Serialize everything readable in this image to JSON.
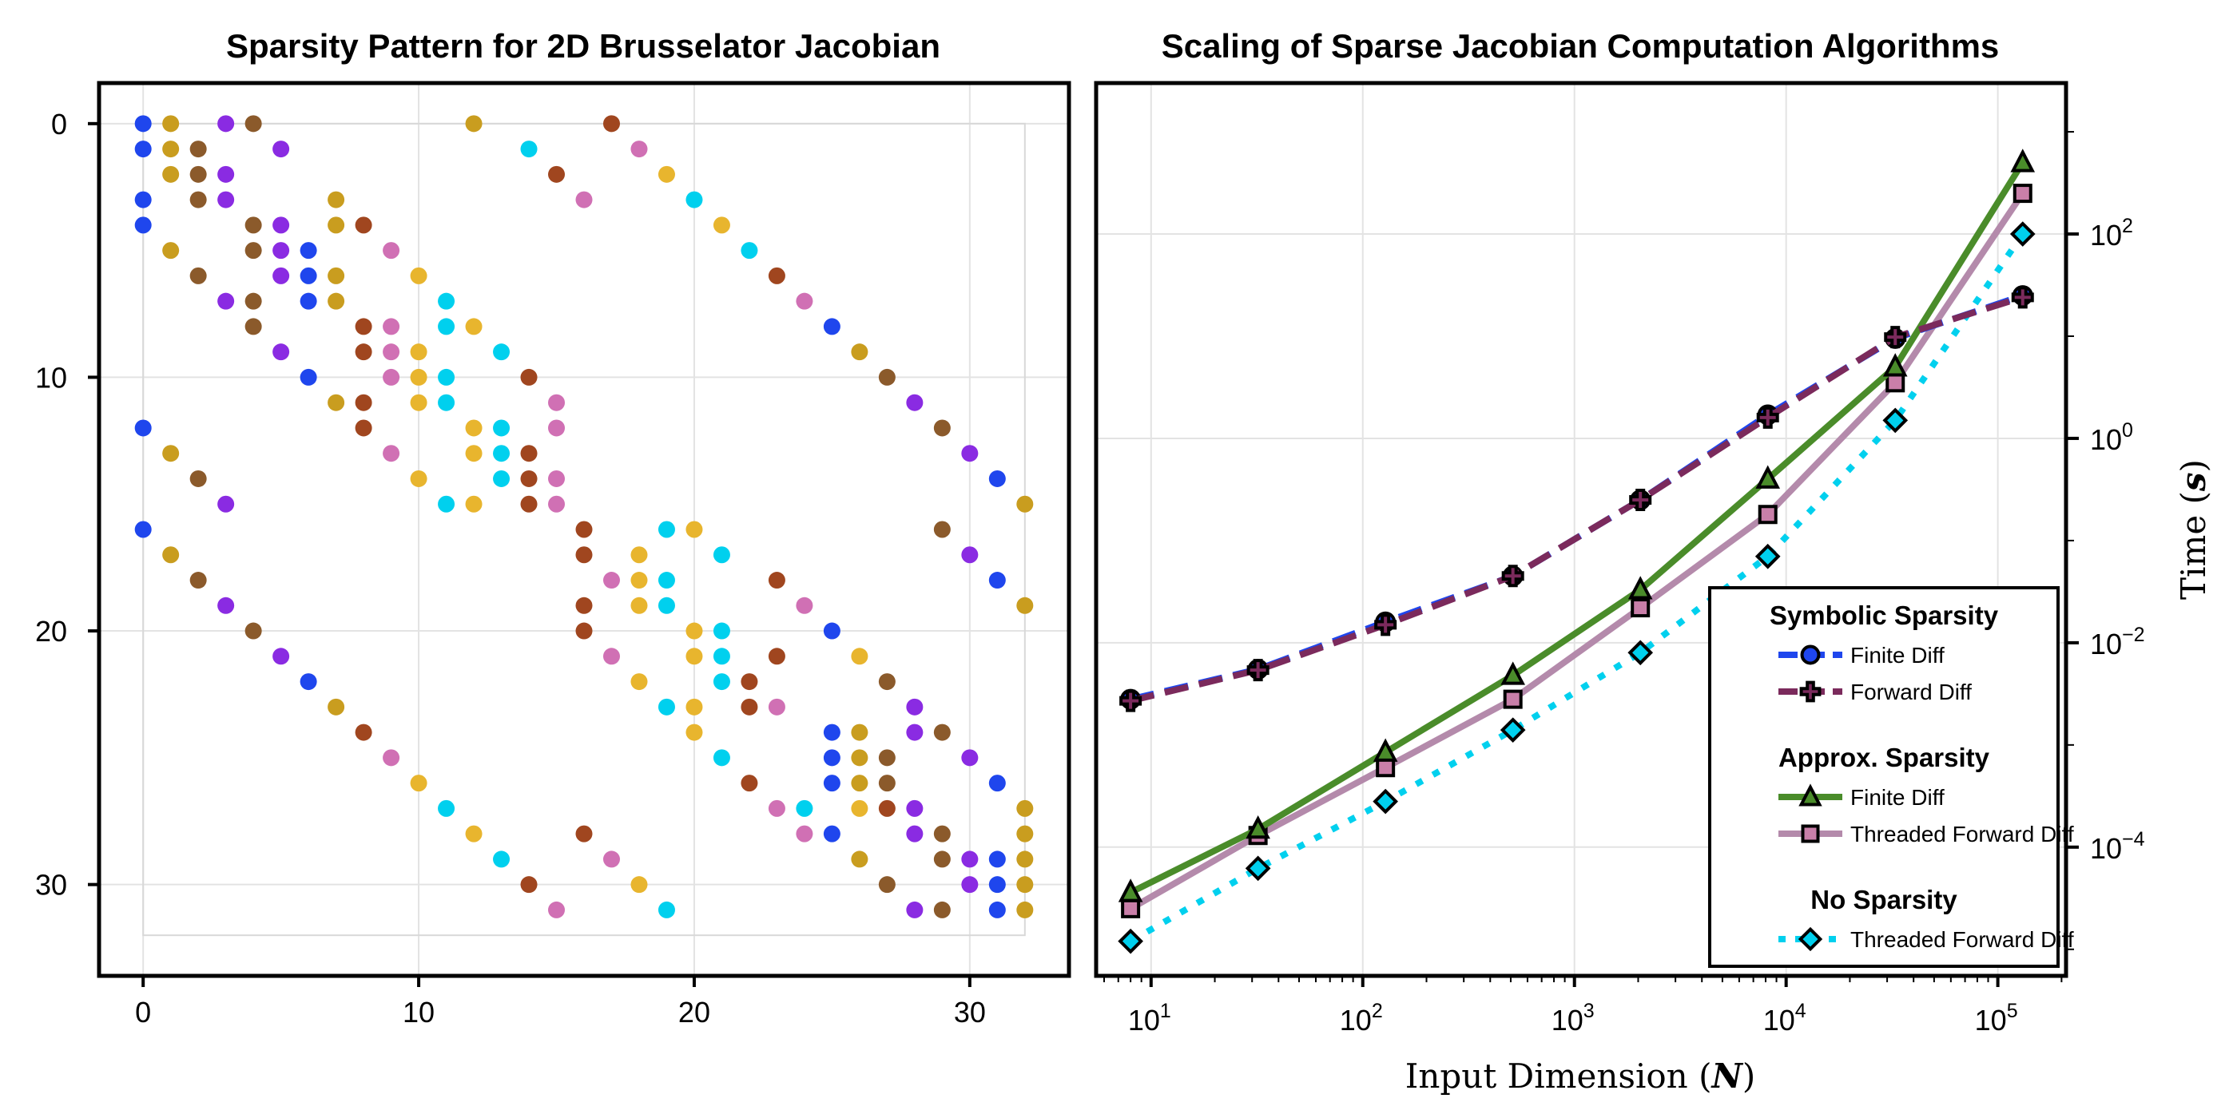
{
  "chart_data": [
    {
      "type": "scatter",
      "title": "Sparsity Pattern for 2D Brusselator Jacobian",
      "xlabel": "",
      "ylabel": "",
      "xlim": [
        -1.6,
        33.6
      ],
      "ylim": [
        33.6,
        -1.6
      ],
      "y_reversed": true,
      "grid": true,
      "x_ticks": [
        0,
        10,
        20,
        30
      ],
      "y_ticks": [
        0,
        10,
        20,
        30
      ],
      "x_tick_labels": [
        "0",
        "10",
        "20",
        "30"
      ],
      "y_tick_labels": [
        "0",
        "10",
        "20",
        "30"
      ],
      "colors": [
        "#1f46ed",
        "#c99d1f",
        "#8a2be2",
        "#8b5a2b",
        "#00d0ee",
        "#d070b4",
        "#e8b52e",
        "#a0461f"
      ],
      "points": [
        [
          0,
          0,
          0
        ],
        [
          1,
          0,
          1
        ],
        [
          3,
          0,
          2
        ],
        [
          4,
          0,
          3
        ],
        [
          12,
          0,
          1
        ],
        [
          17,
          0,
          7
        ],
        [
          0,
          1,
          0
        ],
        [
          1,
          1,
          1
        ],
        [
          2,
          1,
          3
        ],
        [
          5,
          1,
          2
        ],
        [
          14,
          1,
          4
        ],
        [
          18,
          1,
          5
        ],
        [
          1,
          2,
          1
        ],
        [
          2,
          2,
          3
        ],
        [
          3,
          2,
          2
        ],
        [
          15,
          2,
          7
        ],
        [
          19,
          2,
          6
        ],
        [
          0,
          3,
          0
        ],
        [
          2,
          3,
          3
        ],
        [
          3,
          3,
          2
        ],
        [
          7,
          3,
          1
        ],
        [
          16,
          3,
          5
        ],
        [
          20,
          3,
          4
        ],
        [
          0,
          4,
          0
        ],
        [
          4,
          4,
          3
        ],
        [
          5,
          4,
          2
        ],
        [
          7,
          4,
          1
        ],
        [
          8,
          4,
          7
        ],
        [
          21,
          4,
          6
        ],
        [
          1,
          5,
          1
        ],
        [
          4,
          5,
          3
        ],
        [
          5,
          5,
          2
        ],
        [
          6,
          5,
          0
        ],
        [
          9,
          5,
          5
        ],
        [
          22,
          5,
          4
        ],
        [
          2,
          6,
          3
        ],
        [
          5,
          6,
          2
        ],
        [
          6,
          6,
          0
        ],
        [
          7,
          6,
          1
        ],
        [
          10,
          6,
          6
        ],
        [
          23,
          6,
          7
        ],
        [
          3,
          7,
          2
        ],
        [
          4,
          7,
          3
        ],
        [
          6,
          7,
          0
        ],
        [
          7,
          7,
          1
        ],
        [
          11,
          7,
          4
        ],
        [
          24,
          7,
          5
        ],
        [
          4,
          8,
          3
        ],
        [
          8,
          8,
          7
        ],
        [
          9,
          8,
          5
        ],
        [
          11,
          8,
          4
        ],
        [
          12,
          8,
          6
        ],
        [
          25,
          8,
          0
        ],
        [
          5,
          9,
          2
        ],
        [
          8,
          9,
          7
        ],
        [
          9,
          9,
          5
        ],
        [
          10,
          9,
          6
        ],
        [
          13,
          9,
          4
        ],
        [
          26,
          9,
          1
        ],
        [
          6,
          10,
          0
        ],
        [
          9,
          10,
          5
        ],
        [
          10,
          10,
          6
        ],
        [
          11,
          10,
          4
        ],
        [
          14,
          10,
          7
        ],
        [
          27,
          10,
          3
        ],
        [
          7,
          11,
          1
        ],
        [
          8,
          11,
          7
        ],
        [
          10,
          11,
          6
        ],
        [
          11,
          11,
          4
        ],
        [
          15,
          11,
          5
        ],
        [
          28,
          11,
          2
        ],
        [
          8,
          12,
          7
        ],
        [
          12,
          12,
          6
        ],
        [
          13,
          12,
          4
        ],
        [
          15,
          12,
          5
        ],
        [
          29,
          12,
          3
        ],
        [
          9,
          13,
          5
        ],
        [
          12,
          13,
          6
        ],
        [
          13,
          13,
          4
        ],
        [
          14,
          13,
          7
        ],
        [
          30,
          13,
          2
        ],
        [
          10,
          14,
          6
        ],
        [
          13,
          14,
          4
        ],
        [
          14,
          14,
          7
        ],
        [
          15,
          14,
          5
        ],
        [
          31,
          14,
          0
        ],
        [
          11,
          15,
          4
        ],
        [
          12,
          15,
          6
        ],
        [
          14,
          15,
          7
        ],
        [
          15,
          15,
          5
        ],
        [
          32,
          15,
          1
        ],
        [
          16,
          16,
          7
        ],
        [
          19,
          16,
          4
        ],
        [
          20,
          16,
          6
        ],
        [
          29,
          16,
          3
        ],
        [
          16,
          17,
          7
        ],
        [
          18,
          17,
          6
        ],
        [
          21,
          17,
          4
        ],
        [
          30,
          17,
          2
        ],
        [
          17,
          18,
          5
        ],
        [
          18,
          18,
          6
        ],
        [
          19,
          18,
          4
        ],
        [
          23,
          18,
          7
        ],
        [
          31,
          18,
          0
        ],
        [
          16,
          19,
          7
        ],
        [
          18,
          19,
          6
        ],
        [
          19,
          19,
          4
        ],
        [
          24,
          19,
          5
        ],
        [
          32,
          19,
          1
        ],
        [
          16,
          20,
          7
        ],
        [
          20,
          20,
          6
        ],
        [
          21,
          20,
          4
        ],
        [
          25,
          20,
          0
        ],
        [
          17,
          21,
          5
        ],
        [
          20,
          21,
          6
        ],
        [
          21,
          21,
          4
        ],
        [
          23,
          21,
          7
        ],
        [
          26,
          21,
          6
        ],
        [
          18,
          22,
          6
        ],
        [
          21,
          22,
          4
        ],
        [
          22,
          22,
          7
        ],
        [
          27,
          22,
          3
        ],
        [
          19,
          23,
          4
        ],
        [
          20,
          23,
          6
        ],
        [
          22,
          23,
          7
        ],
        [
          23,
          23,
          5
        ],
        [
          28,
          23,
          2
        ],
        [
          20,
          24,
          6
        ],
        [
          25,
          24,
          0
        ],
        [
          26,
          24,
          1
        ],
        [
          28,
          24,
          2
        ],
        [
          29,
          24,
          3
        ],
        [
          21,
          25,
          4
        ],
        [
          25,
          25,
          0
        ],
        [
          26,
          25,
          1
        ],
        [
          27,
          25,
          3
        ],
        [
          30,
          25,
          2
        ],
        [
          22,
          26,
          7
        ],
        [
          25,
          26,
          0
        ],
        [
          26,
          26,
          1
        ],
        [
          27,
          26,
          3
        ],
        [
          31,
          26,
          0
        ],
        [
          23,
          27,
          5
        ],
        [
          24,
          27,
          4
        ],
        [
          26,
          27,
          6
        ],
        [
          27,
          27,
          7
        ],
        [
          28,
          27,
          2
        ],
        [
          32,
          27,
          1
        ],
        [
          24,
          28,
          5
        ],
        [
          25,
          28,
          0
        ],
        [
          28,
          28,
          2
        ],
        [
          29,
          28,
          3
        ],
        [
          32,
          28,
          1
        ],
        [
          26,
          29,
          1
        ],
        [
          29,
          29,
          3
        ],
        [
          30,
          29,
          2
        ],
        [
          31,
          29,
          0
        ],
        [
          32,
          29,
          1
        ],
        [
          27,
          30,
          3
        ],
        [
          30,
          30,
          2
        ],
        [
          31,
          30,
          0
        ],
        [
          32,
          30,
          1
        ],
        [
          28,
          31,
          2
        ],
        [
          29,
          31,
          3
        ],
        [
          31,
          31,
          0
        ],
        [
          32,
          31,
          1
        ],
        [
          0,
          16,
          0
        ],
        [
          1,
          17,
          1
        ],
        [
          2,
          18,
          3
        ],
        [
          3,
          19,
          2
        ],
        [
          4,
          20,
          3
        ],
        [
          5,
          21,
          2
        ],
        [
          6,
          22,
          0
        ],
        [
          7,
          23,
          1
        ],
        [
          8,
          24,
          7
        ],
        [
          9,
          25,
          5
        ],
        [
          10,
          26,
          6
        ],
        [
          11,
          27,
          4
        ],
        [
          12,
          28,
          6
        ],
        [
          13,
          29,
          4
        ],
        [
          14,
          30,
          7
        ],
        [
          15,
          31,
          5
        ],
        [
          16,
          28,
          7
        ],
        [
          17,
          29,
          5
        ],
        [
          18,
          30,
          6
        ],
        [
          19,
          31,
          4
        ],
        [
          0,
          12,
          0
        ],
        [
          1,
          13,
          1
        ],
        [
          2,
          14,
          3
        ],
        [
          3,
          15,
          2
        ]
      ]
    },
    {
      "type": "line",
      "title": "Scaling of Sparse Jacobian Computation Algorithms",
      "xlabel": "Input Dimension (N)",
      "ylabel": "Time (s)",
      "x_scale": "log",
      "y_scale": "log",
      "xlim": [
        5.5,
        210000
      ],
      "ylim": [
        5.5e-06,
        3000
      ],
      "grid": true,
      "x_ticks": [
        10,
        100,
        1000,
        10000,
        100000
      ],
      "x_tick_labels": [
        [
          "10",
          "1"
        ],
        [
          "10",
          "2"
        ],
        [
          "10",
          "3"
        ],
        [
          "10",
          "4"
        ],
        [
          "10",
          "5"
        ]
      ],
      "y_ticks": [
        0.0001,
        0.01,
        1,
        100
      ],
      "y_tick_labels": [
        [
          "10",
          "−4"
        ],
        [
          "10",
          "−2"
        ],
        [
          "10",
          "0"
        ],
        [
          "10",
          "2"
        ]
      ],
      "y_axis_side": "right",
      "legend_position": "bottom-right",
      "x": [
        8,
        32,
        128,
        512,
        2048,
        8192,
        32768,
        131072
      ],
      "series": [
        {
          "name": "Finite Diff",
          "group": "Symbolic Sparsity",
          "color": "#1f46ed",
          "dash": "dashed",
          "marker": "circle",
          "marker_color": "#1f46ed",
          "values": [
            0.0028,
            0.0055,
            0.016,
            0.045,
            0.25,
            1.7,
            9.5,
            25
          ]
        },
        {
          "name": "Forward Diff",
          "group": "Symbolic Sparsity",
          "color": "#7b2a5c",
          "dash": "dashed",
          "marker": "cross",
          "marker_color": "#7b2a5c",
          "values": [
            0.0027,
            0.0054,
            0.015,
            0.045,
            0.25,
            1.6,
            9.8,
            24
          ]
        },
        {
          "name": "Finite Diff",
          "group": "Approx. Sparsity",
          "color": "#4a8c2a",
          "dash": "solid",
          "marker": "triangle",
          "marker_color": "#4a8c2a",
          "values": [
            3.6e-05,
            0.00015,
            0.00085,
            0.0048,
            0.033,
            0.4,
            5.0,
            500
          ]
        },
        {
          "name": "Threaded Forward Diff",
          "group": "Approx. Sparsity",
          "color": "#b48aab",
          "dash": "solid",
          "marker": "square",
          "marker_color": "#c97fa9",
          "values": [
            2.5e-05,
            0.00013,
            0.0006,
            0.0028,
            0.022,
            0.18,
            3.5,
            250
          ]
        },
        {
          "name": "Threaded Forward Diff",
          "group": "No Sparsity",
          "color": "#00d0ee",
          "dash": "dotted",
          "marker": "diamond",
          "marker_color": "#00d0ee",
          "values": [
            1.2e-05,
            6.2e-05,
            0.00028,
            0.0014,
            0.008,
            0.07,
            1.5,
            100
          ]
        }
      ],
      "legend": {
        "groups": [
          {
            "title": "Symbolic Sparsity",
            "items": [
              "Finite Diff",
              "Forward Diff"
            ]
          },
          {
            "title": "Approx. Sparsity",
            "items": [
              "Finite Diff",
              "Threaded Forward Diff"
            ]
          },
          {
            "title": "No Sparsity",
            "items": [
              "Threaded Forward Diff"
            ]
          }
        ]
      }
    }
  ]
}
